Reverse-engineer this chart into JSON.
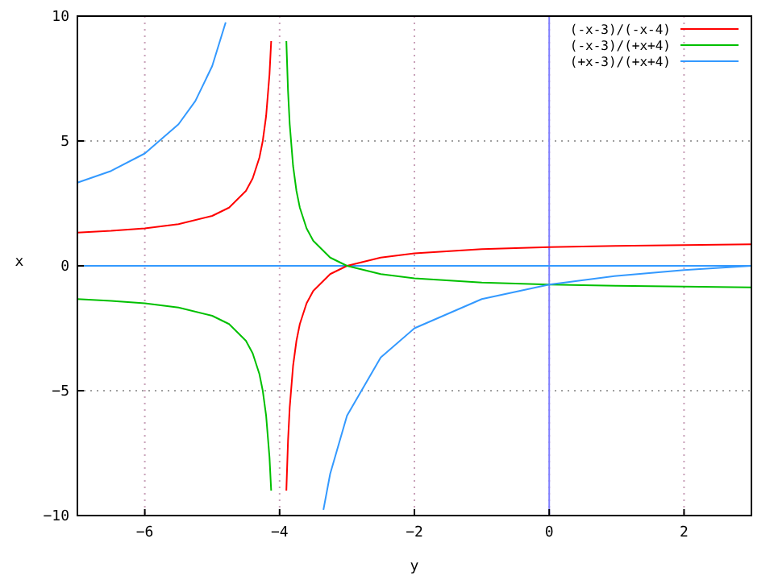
{
  "chart_data": {
    "type": "line",
    "xlabel": "y",
    "ylabel": "x",
    "xlim": [
      -7,
      3
    ],
    "ylim": [
      -10,
      10
    ],
    "xticks": [
      -6,
      -4,
      -2,
      0,
      2
    ],
    "yticks": [
      -10,
      -5,
      0,
      5,
      10
    ],
    "grid": true,
    "legend": "top right",
    "marker": "none",
    "line_style": "solid",
    "ref_lines": [
      {
        "axis": "x",
        "value": 0,
        "color": "#8080ff"
      },
      {
        "axis": "y",
        "value": 0,
        "color": "#3399ff"
      }
    ],
    "series": [
      {
        "name": "(-x-3)/(-x-4)",
        "color": "#ff0000",
        "x": [
          -7,
          -6.5,
          -6,
          -5.5,
          -5,
          -4.75,
          -4.5,
          -4.4,
          -4.3,
          -4.25,
          -4.2,
          -4.15,
          -4.125,
          -4,
          -3.9,
          -3.875,
          -3.85,
          -3.8,
          -3.75,
          -3.7,
          -3.6,
          -3.5,
          -3.25,
          -3,
          -2.5,
          -2,
          -1,
          0,
          1,
          2,
          3
        ],
        "values": [
          1.33,
          1.4,
          1.5,
          1.67,
          2,
          2.33,
          3,
          3.5,
          4.33,
          5,
          6,
          7.67,
          9,
          null,
          -9,
          -7,
          -5.67,
          -4,
          -3,
          -2.33,
          -1.5,
          -1,
          -0.33,
          0,
          0.33,
          0.5,
          0.67,
          0.75,
          0.8,
          0.83,
          0.86
        ]
      },
      {
        "name": "(-x-3)/(+x+4)",
        "color": "#00c000",
        "x": [
          -7,
          -6.5,
          -6,
          -5.5,
          -5,
          -4.75,
          -4.5,
          -4.4,
          -4.3,
          -4.25,
          -4.2,
          -4.15,
          -4.125,
          -4,
          -3.9,
          -3.875,
          -3.85,
          -3.8,
          -3.75,
          -3.7,
          -3.6,
          -3.5,
          -3.25,
          -3,
          -2.5,
          -2,
          -1,
          0,
          1,
          2,
          3
        ],
        "values": [
          -1.33,
          -1.4,
          -1.5,
          -1.67,
          -2,
          -2.33,
          -3,
          -3.5,
          -4.33,
          -5,
          -6,
          -7.67,
          -9,
          null,
          9,
          7,
          5.67,
          4,
          3,
          2.33,
          1.5,
          1,
          0.33,
          0,
          -0.33,
          -0.5,
          -0.67,
          -0.75,
          -0.8,
          -0.83,
          -0.86
        ]
      },
      {
        "name": "(+x-3)/(+x+4)",
        "color": "#3399ff",
        "x": [
          -7,
          -6.5,
          -6,
          -5.5,
          -5.25,
          -5,
          -4.8,
          -4,
          -3.35,
          -3.25,
          -3,
          -2.5,
          -2,
          -1,
          0,
          1,
          2,
          3
        ],
        "values": [
          3.33,
          3.8,
          4.5,
          5.67,
          6.6,
          8,
          9.75,
          null,
          -9.77,
          -8.33,
          -6,
          -3.67,
          -2.5,
          -1.33,
          -0.75,
          -0.4,
          -0.17,
          0
        ]
      }
    ]
  }
}
